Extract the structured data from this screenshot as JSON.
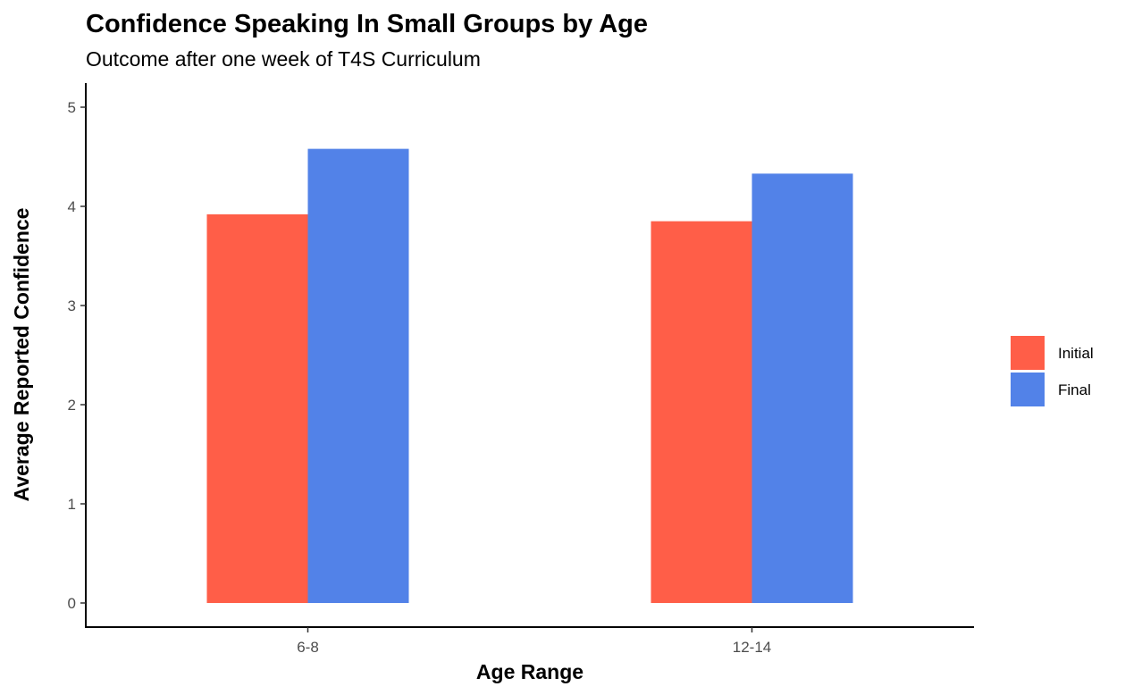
{
  "chart_data": {
    "type": "bar",
    "title": "Confidence Speaking In Small Groups by Age",
    "subtitle": "Outcome after one week of T4S Curriculum",
    "xlabel": "Age Range",
    "ylabel": "Average Reported Confidence",
    "categories": [
      "6-8",
      "12-14"
    ],
    "series": [
      {
        "name": "Initial",
        "color": "#FF5E48",
        "values": [
          3.92,
          3.85
        ]
      },
      {
        "name": "Final",
        "color": "#5282E8",
        "values": [
          4.58,
          4.33
        ]
      }
    ],
    "ylim": [
      0,
      5
    ],
    "yticks": [
      0,
      1,
      2,
      3,
      4,
      5
    ],
    "grid": false,
    "legend": "right"
  }
}
